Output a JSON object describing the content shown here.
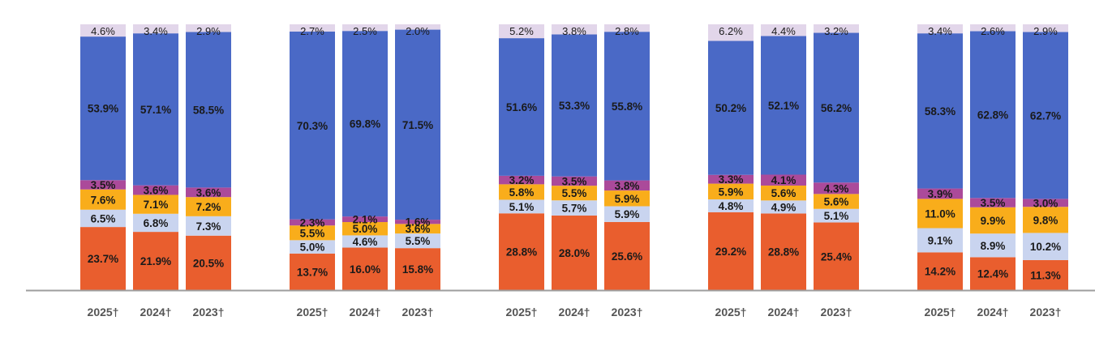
{
  "chart_data": {
    "type": "bar",
    "stacked": true,
    "normalized": true,
    "categories": [
      "2025†",
      "2024†",
      "2023†"
    ],
    "series_names": [
      "orange",
      "light-blue",
      "amber",
      "purple",
      "blue",
      "lavender"
    ],
    "colors": [
      "#e95e2e",
      "#c9d4ef",
      "#f9ad1b",
      "#ab4a9a",
      "#4a69c6",
      "#e2d6ea"
    ],
    "groups": [
      {
        "name": "",
        "bars": [
          {
            "category": "2025†",
            "values": [
              23.7,
              6.5,
              7.6,
              3.5,
              53.9,
              4.6
            ],
            "labels": [
              "23.7%",
              "6.5%",
              "7.6%",
              "3.5%",
              "53.9%",
              "4.6%"
            ]
          },
          {
            "category": "2024†",
            "values": [
              21.9,
              6.8,
              7.1,
              3.6,
              57.1,
              3.4
            ],
            "labels": [
              "21.9%",
              "6.8%",
              "7.1%",
              "3.6%",
              "57.1%",
              "3.4%"
            ]
          },
          {
            "category": "2023†",
            "values": [
              20.5,
              7.3,
              7.2,
              3.6,
              58.5,
              2.9
            ],
            "labels": [
              "20.5%",
              "7.3%",
              "7.2%",
              "3.6%",
              "58.5%",
              "2.9%"
            ]
          }
        ]
      },
      {
        "name": "",
        "bars": [
          {
            "category": "2025†",
            "values": [
              13.7,
              5.0,
              5.5,
              2.3,
              70.3,
              2.7
            ],
            "labels": [
              "13.7%",
              "5.0%",
              "5.5%",
              "2.3%",
              "70.3%",
              "2.7%"
            ]
          },
          {
            "category": "2024†",
            "values": [
              16.0,
              4.6,
              5.0,
              2.1,
              69.8,
              2.5
            ],
            "labels": [
              "16.0%",
              "4.6%",
              "5.0%",
              "2.1%",
              "69.8%",
              "2.5%"
            ]
          },
          {
            "category": "2023†",
            "values": [
              15.8,
              5.5,
              3.6,
              1.6,
              71.5,
              2.0
            ],
            "labels": [
              "15.8%",
              "5.5%",
              "3.6%",
              "1.6%",
              "71.5%",
              "2.0%"
            ]
          }
        ]
      },
      {
        "name": "",
        "bars": [
          {
            "category": "2025†",
            "values": [
              28.8,
              5.1,
              5.8,
              3.2,
              51.6,
              5.2
            ],
            "labels": [
              "28.8%",
              "5.1%",
              "5.8%",
              "3.2%",
              "51.6%",
              "5.2%"
            ]
          },
          {
            "category": "2024†",
            "values": [
              28.0,
              5.7,
              5.5,
              3.5,
              53.3,
              3.8
            ],
            "labels": [
              "28.0%",
              "5.7%",
              "5.5%",
              "3.5%",
              "53.3%",
              "3.8%"
            ]
          },
          {
            "category": "2023†",
            "values": [
              25.6,
              5.9,
              5.9,
              3.8,
              55.8,
              2.8
            ],
            "labels": [
              "25.6%",
              "5.9%",
              "5.9%",
              "3.8%",
              "55.8%",
              "2.8%"
            ]
          }
        ]
      },
      {
        "name": "",
        "bars": [
          {
            "category": "2025†",
            "values": [
              29.2,
              4.8,
              5.9,
              3.3,
              50.2,
              6.2
            ],
            "labels": [
              "29.2%",
              "4.8%",
              "5.9%",
              "3.3%",
              "50.2%",
              "6.2%"
            ]
          },
          {
            "category": "2024†",
            "values": [
              28.8,
              4.9,
              5.6,
              4.1,
              52.1,
              4.4
            ],
            "labels": [
              "28.8%",
              "4.9%",
              "5.6%",
              "4.1%",
              "52.1%",
              "4.4%"
            ]
          },
          {
            "category": "2023†",
            "values": [
              25.4,
              5.1,
              5.6,
              4.3,
              56.2,
              3.2
            ],
            "labels": [
              "25.4%",
              "5.1%",
              "5.6%",
              "4.3%",
              "56.2%",
              "3.2%"
            ]
          }
        ]
      },
      {
        "name": "",
        "bars": [
          {
            "category": "2025†",
            "values": [
              14.2,
              9.1,
              11.0,
              3.9,
              58.3,
              3.4
            ],
            "labels": [
              "14.2%",
              "9.1%",
              "11.0%",
              "3.9%",
              "58.3%",
              "3.4%"
            ]
          },
          {
            "category": "2024†",
            "values": [
              12.4,
              8.9,
              9.9,
              3.5,
              62.8,
              2.6
            ],
            "labels": [
              "12.4%",
              "8.9%",
              "9.9%",
              "3.5%",
              "62.8%",
              "2.6%"
            ]
          },
          {
            "category": "2023†",
            "values": [
              11.3,
              10.2,
              9.8,
              3.0,
              62.7,
              2.9
            ],
            "labels": [
              "11.3%",
              "10.2%",
              "9.8%",
              "3.0%",
              "62.7%",
              "2.9%"
            ]
          }
        ]
      }
    ],
    "ylim": [
      0,
      100
    ],
    "title": "",
    "xlabel": "",
    "ylabel": "",
    "grid": false,
    "legend": "none"
  }
}
